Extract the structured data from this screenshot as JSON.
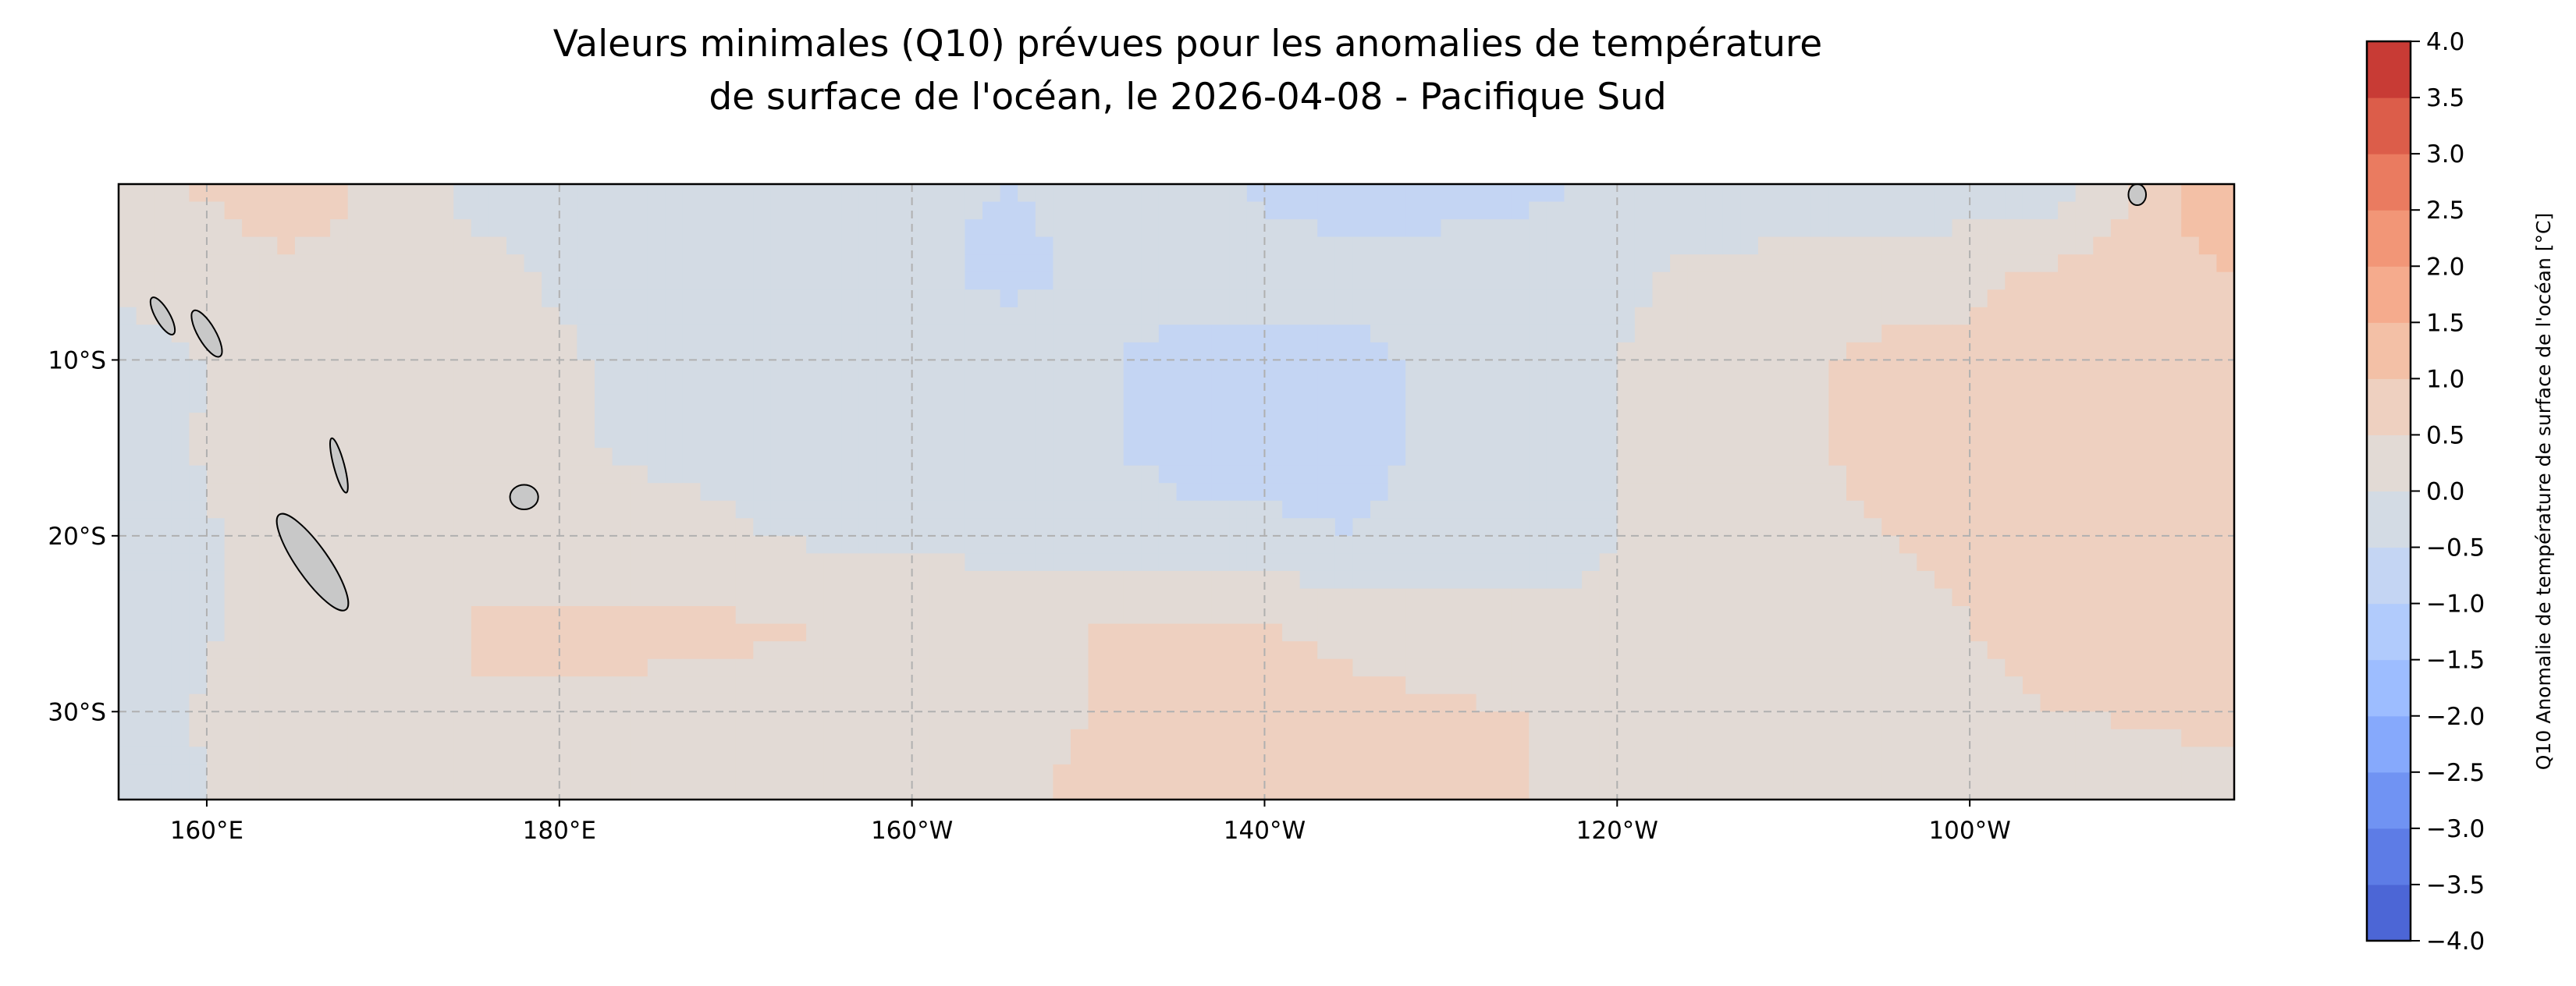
{
  "chart_data": {
    "type": "heatmap",
    "title_lines": [
      "Valeurs minimales (Q10) prévues pour les anomalies de température",
      "de surface de l'océan, le 2026-04-08 - Pacifique Sud"
    ],
    "colorbar_label": "Q10 Anomalie de température de surface de l'océan [°C]",
    "xlim_deg_east": [
      155,
      275
    ],
    "ylim_deg_south": [
      0,
      35
    ],
    "x_ticks": [
      {
        "value": 160,
        "label": "160°E"
      },
      {
        "value": 180,
        "label": "180°E"
      },
      {
        "value": 200,
        "label": "160°W"
      },
      {
        "value": 220,
        "label": "140°W"
      },
      {
        "value": 240,
        "label": "120°W"
      },
      {
        "value": 260,
        "label": "100°W"
      }
    ],
    "y_ticks": [
      {
        "value": 10,
        "label": "10°S"
      },
      {
        "value": 20,
        "label": "20°S"
      },
      {
        "value": 30,
        "label": "30°S"
      }
    ],
    "grid": true,
    "colormap": "coolwarm",
    "levels": [
      -4.0,
      -3.5,
      -3.0,
      -2.5,
      -2.0,
      -1.5,
      -1.0,
      -0.5,
      0.0,
      0.5,
      1.0,
      1.5,
      2.0,
      2.5,
      3.0,
      3.5,
      4.0
    ],
    "level_labels": [
      "−4.0",
      "−3.5",
      "−3.0",
      "−2.5",
      "−2.0",
      "−1.5",
      "−1.0",
      "−0.5",
      "0.0",
      "0.5",
      "1.0",
      "1.5",
      "2.0",
      "2.5",
      "3.0",
      "3.5",
      "4.0"
    ],
    "band_colors": [
      "#4c66d6",
      "#5d7ce6",
      "#7093f3",
      "#86a9fc",
      "#9dbdff",
      "#b1cbfc",
      "#c4d5f3",
      "#d3dbe4",
      "#e2dad5",
      "#eed0c0",
      "#f3c0a6",
      "#f5ab8d",
      "#f29677",
      "#ea7b60",
      "#dc5d4a",
      "#c83b35"
    ],
    "grid_lon_deg_east": [
      155,
      165,
      175,
      185,
      195,
      205,
      215,
      225,
      235,
      245,
      255,
      265,
      275
    ],
    "grid_lat_deg_south": [
      0,
      5,
      10,
      15,
      20,
      25,
      30,
      35
    ],
    "values": [
      [
        0.3,
        0.8,
        -0.1,
        -0.2,
        -0.3,
        -0.5,
        -0.4,
        -0.7,
        -0.6,
        -0.3,
        -0.5,
        -0.3,
        1.6
      ],
      [
        0.2,
        0.4,
        0.1,
        -0.2,
        -0.2,
        -0.6,
        -0.3,
        -0.4,
        -0.3,
        0.1,
        0.3,
        0.6,
        1.0
      ],
      [
        -0.3,
        0.3,
        0.2,
        -0.1,
        -0.2,
        -0.3,
        -0.6,
        -0.6,
        -0.2,
        0.2,
        0.6,
        0.5,
        0.7
      ],
      [
        -0.2,
        0.3,
        0.3,
        -0.1,
        -0.1,
        -0.3,
        -0.6,
        -0.6,
        -0.3,
        0.3,
        0.6,
        0.7,
        0.6
      ],
      [
        -0.3,
        0.2,
        0.5,
        0.2,
        -0.1,
        -0.2,
        -0.4,
        -0.5,
        -0.2,
        0.2,
        0.5,
        0.8,
        0.8
      ],
      [
        -0.4,
        0.3,
        0.5,
        0.6,
        0.5,
        0.4,
        0.6,
        0.4,
        0.1,
        0.1,
        0.3,
        0.7,
        0.9
      ],
      [
        -0.3,
        0.4,
        0.5,
        0.4,
        0.4,
        0.3,
        0.7,
        0.6,
        0.5,
        0.2,
        0.2,
        0.5,
        0.6
      ],
      [
        -0.2,
        0.2,
        0.4,
        0.4,
        0.2,
        0.4,
        0.8,
        0.6,
        0.5,
        0.2,
        0.0,
        0.2,
        0.4
      ]
    ]
  }
}
